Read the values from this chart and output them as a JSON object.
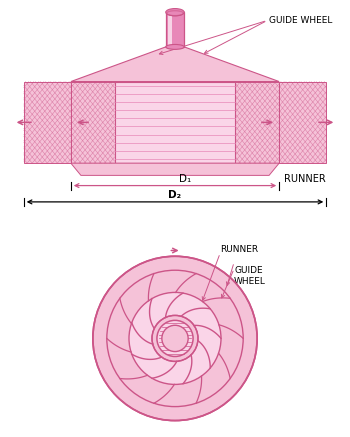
{
  "bg_color": "#ffffff",
  "pink_fill": "#f5c2d8",
  "pink_dark": "#cc5588",
  "pink_mid": "#e888b8",
  "pink_light": "#fce8f2",
  "pink_hatch": "#dd77aa",
  "pink_vlight": "#fad5e8",
  "text_color": "#333333",
  "label_guide_wheel": "GUIDE WHEEL",
  "label_runner": "RUNNER",
  "label_d1": "D₁",
  "label_d2": "D₂",
  "n_guide_vanes": 10,
  "n_runner_blades": 9,
  "R_outer": 1.0,
  "R_guide_out": 0.83,
  "R_guide_in": 0.56,
  "R_runner_in": 0.28,
  "R_shaft_out": 0.22,
  "R_shaft_in": 0.16
}
